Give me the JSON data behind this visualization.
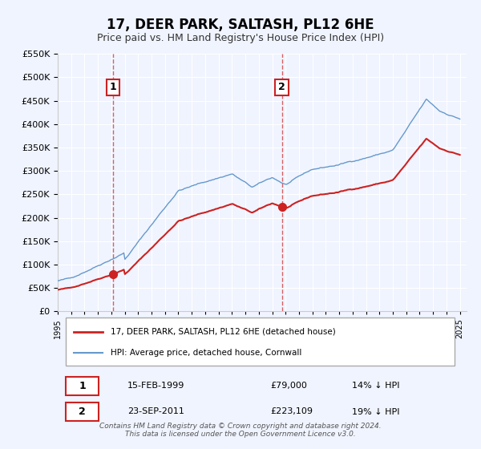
{
  "title": "17, DEER PARK, SALTASH, PL12 6HE",
  "subtitle": "Price paid vs. HM Land Registry's House Price Index (HPI)",
  "bg_color": "#f0f4ff",
  "plot_bg_color": "#f0f4ff",
  "grid_color": "#ffffff",
  "hpi_color": "#6699cc",
  "price_color": "#cc2222",
  "ylim": [
    0,
    550000
  ],
  "yticks": [
    0,
    50000,
    100000,
    150000,
    200000,
    250000,
    300000,
    350000,
    400000,
    450000,
    500000,
    550000
  ],
  "sale1_date": "15-FEB-1999",
  "sale1_price": 79000,
  "sale1_hpi_pct": "14% ↓ HPI",
  "sale1_year": 1999.12,
  "sale2_date": "23-SEP-2011",
  "sale2_price": 223109,
  "sale2_hpi_pct": "19% ↓ HPI",
  "sale2_year": 2011.72,
  "legend_label1": "17, DEER PARK, SALTASH, PL12 6HE (detached house)",
  "legend_label2": "HPI: Average price, detached house, Cornwall",
  "footnote": "Contains HM Land Registry data © Crown copyright and database right 2024.\nThis data is licensed under the Open Government Licence v3.0.",
  "xmin": 1995.0,
  "xmax": 2025.5
}
